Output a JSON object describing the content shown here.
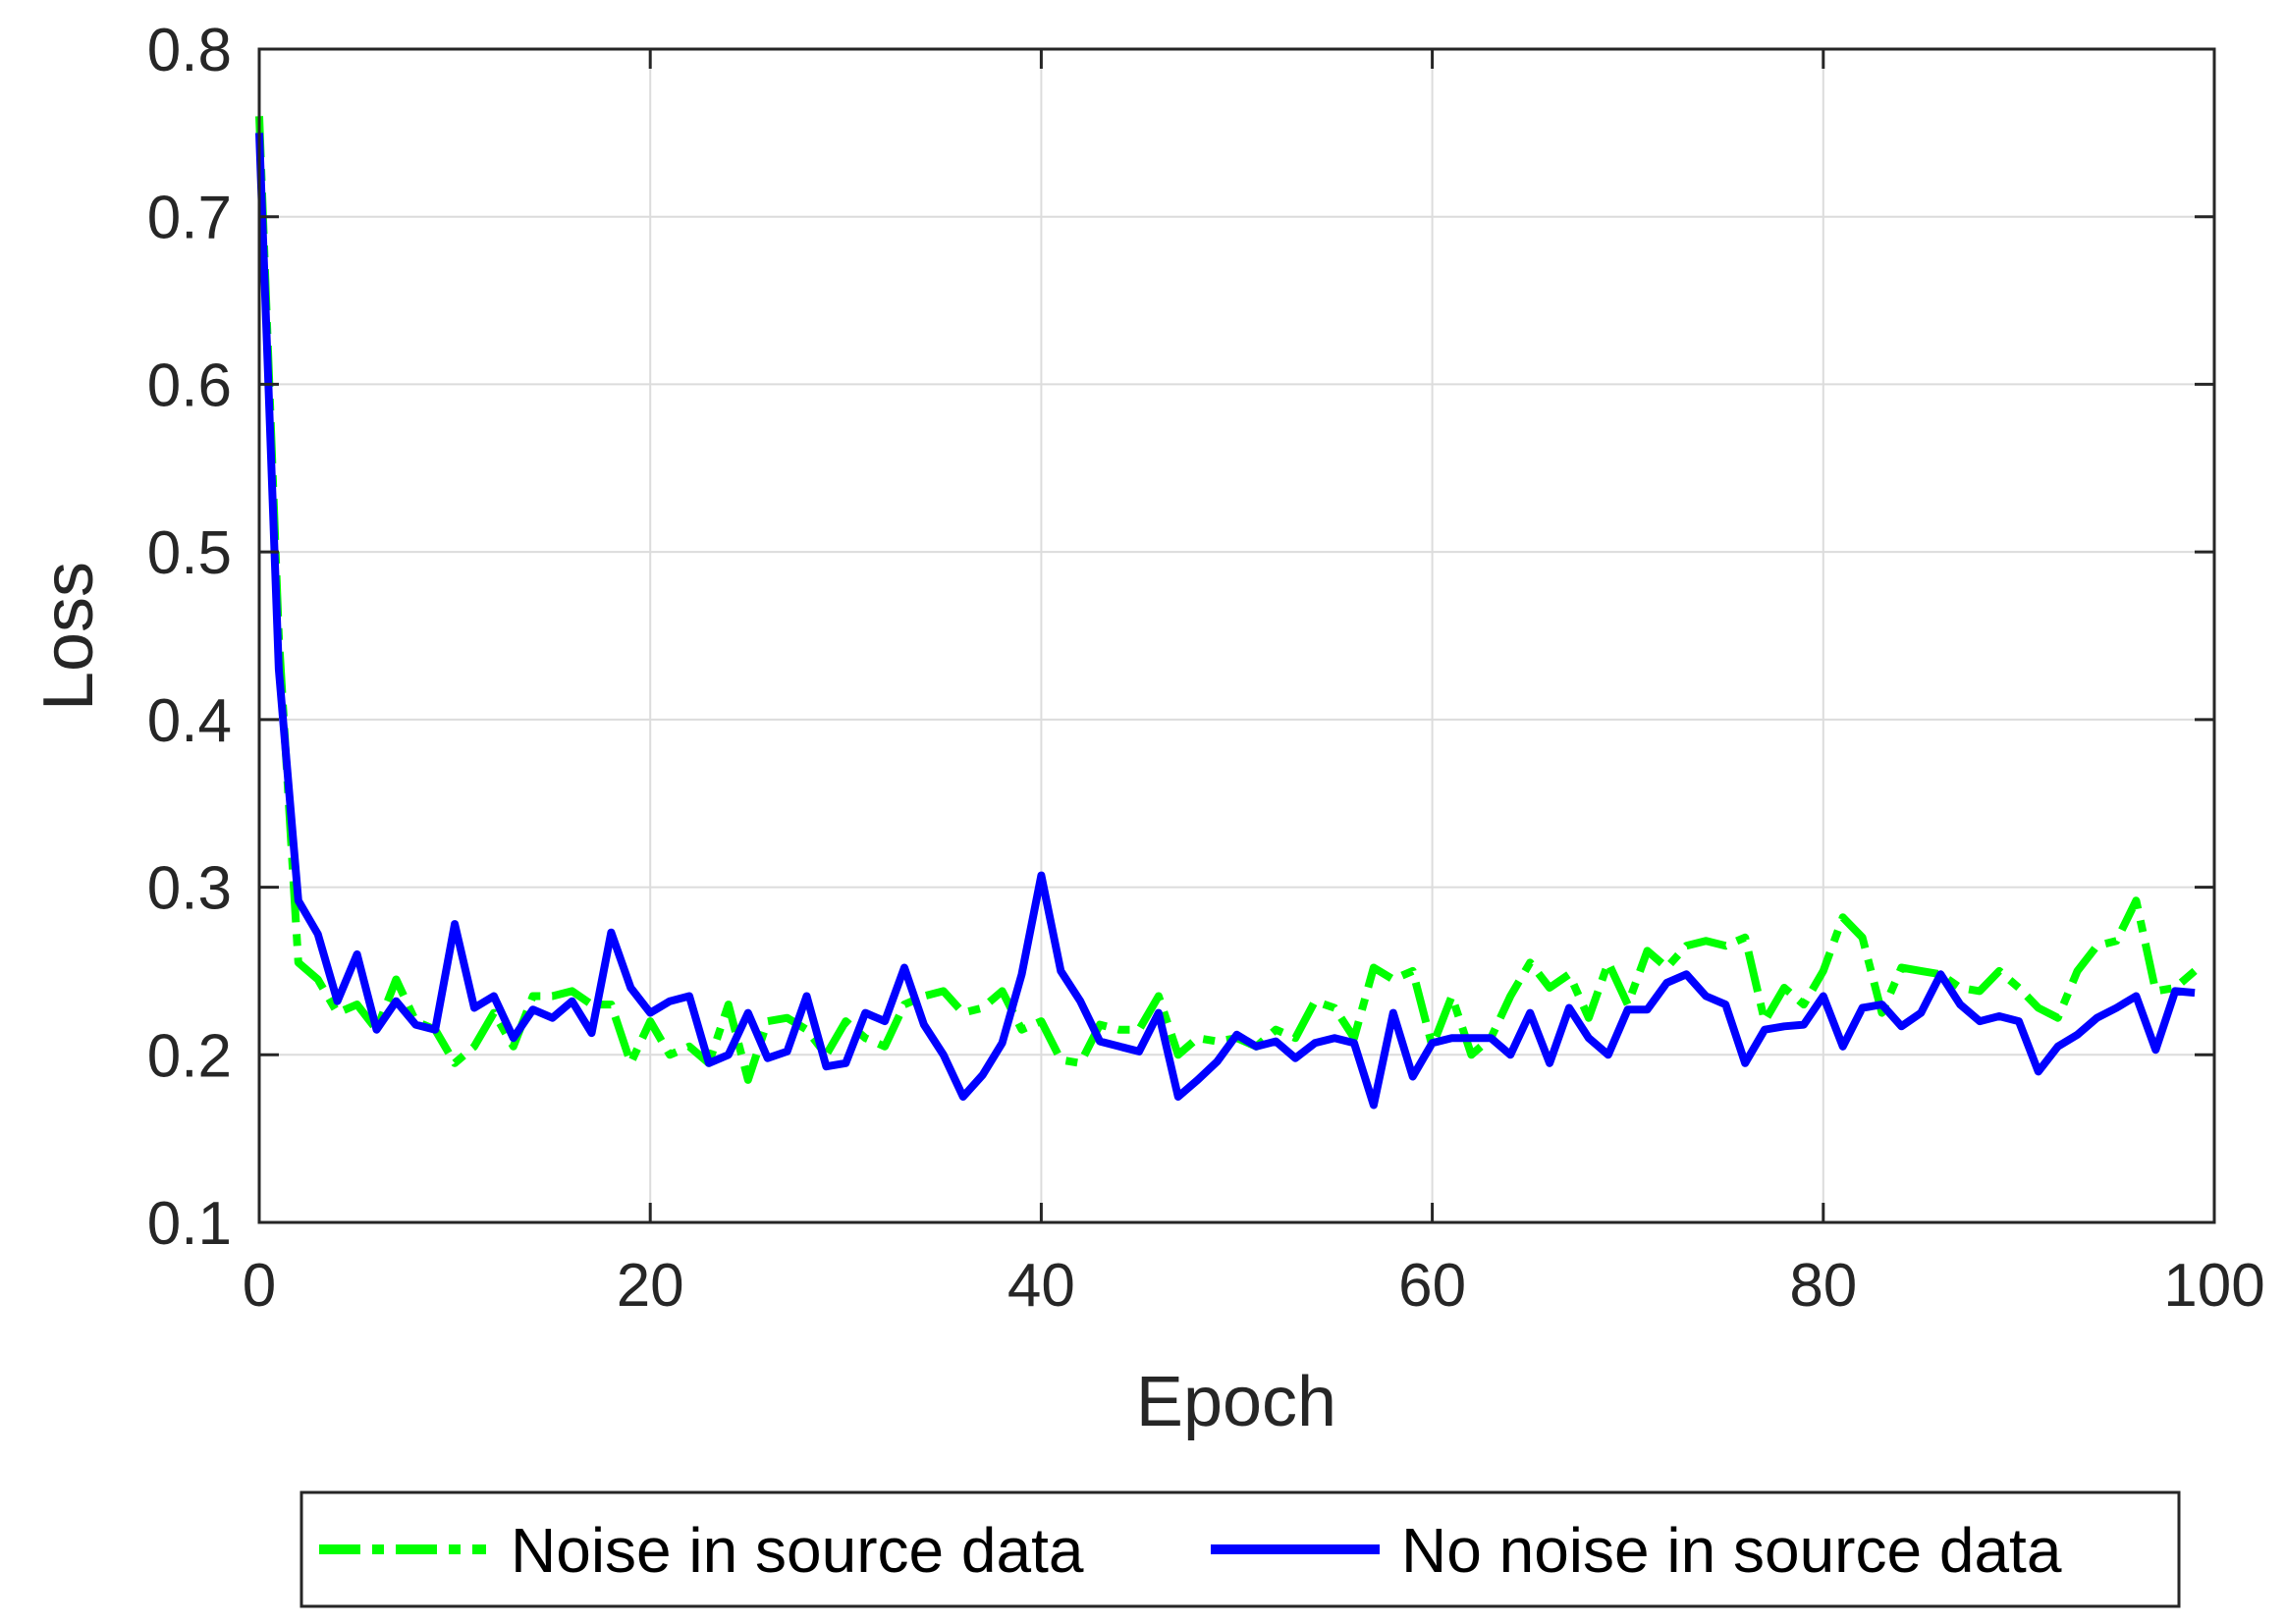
{
  "chart_data": {
    "type": "line",
    "title": "",
    "xlabel": "Epoch",
    "ylabel": "Loss",
    "xlim": [
      0,
      100
    ],
    "ylim": [
      0.1,
      0.8
    ],
    "xticks": [
      0,
      20,
      40,
      60,
      80,
      100
    ],
    "yticks": [
      0.1,
      0.2,
      0.3,
      0.4,
      0.5,
      0.6,
      0.7,
      0.8
    ],
    "xtick_labels": [
      "0",
      "20",
      "40",
      "60",
      "80",
      "100"
    ],
    "ytick_labels": [
      "0.1",
      "0.2",
      "0.3",
      "0.4",
      "0.5",
      "0.6",
      "0.7",
      "0.8"
    ],
    "grid": true,
    "legend_position": "bottom-outside",
    "x": [
      0,
      1,
      2,
      3,
      4,
      5,
      6,
      7,
      8,
      9,
      10,
      11,
      12,
      13,
      14,
      15,
      16,
      17,
      18,
      19,
      20,
      21,
      22,
      23,
      24,
      25,
      26,
      27,
      28,
      29,
      30,
      31,
      32,
      33,
      34,
      35,
      36,
      37,
      38,
      39,
      40,
      41,
      42,
      43,
      44,
      45,
      46,
      47,
      48,
      49,
      50,
      51,
      52,
      53,
      54,
      55,
      56,
      57,
      58,
      59,
      60,
      61,
      62,
      63,
      64,
      65,
      66,
      67,
      68,
      69,
      70,
      71,
      72,
      73,
      74,
      75,
      76,
      77,
      78,
      79,
      80,
      81,
      82,
      83,
      84,
      85,
      86,
      87,
      88,
      89,
      90,
      91,
      92,
      93,
      94,
      95,
      96,
      97,
      98,
      99
    ],
    "series": [
      {
        "name": "Noise in source data",
        "color": "#00ff00",
        "line_style": "dash-dot",
        "values": [
          0.76,
          0.45,
          0.255,
          0.245,
          0.225,
          0.23,
          0.215,
          0.245,
          0.22,
          0.215,
          0.195,
          0.205,
          0.225,
          0.205,
          0.235,
          0.235,
          0.238,
          0.23,
          0.23,
          0.195,
          0.22,
          0.2,
          0.205,
          0.195,
          0.23,
          0.185,
          0.22,
          0.222,
          0.215,
          0.2,
          0.22,
          0.21,
          0.205,
          0.23,
          0.235,
          0.238,
          0.225,
          0.228,
          0.238,
          0.215,
          0.22,
          0.197,
          0.195,
          0.218,
          0.215,
          0.215,
          0.235,
          0.2,
          0.21,
          0.208,
          0.21,
          0.205,
          0.215,
          0.21,
          0.232,
          0.228,
          0.21,
          0.252,
          0.245,
          0.25,
          0.205,
          0.235,
          0.2,
          0.21,
          0.235,
          0.255,
          0.24,
          0.248,
          0.222,
          0.255,
          0.23,
          0.262,
          0.252,
          0.265,
          0.268,
          0.265,
          0.27,
          0.22,
          0.24,
          0.23,
          0.25,
          0.282,
          0.27,
          0.225,
          0.252,
          0.25,
          0.248,
          0.24,
          0.238,
          0.25,
          0.24,
          0.228,
          0.222,
          0.25,
          0.265,
          0.268,
          0.292,
          0.238,
          0.24,
          0.25
        ]
      },
      {
        "name": "No noise in source data",
        "color": "#0000ff",
        "line_style": "solid",
        "values": [
          0.75,
          0.43,
          0.292,
          0.272,
          0.232,
          0.26,
          0.215,
          0.232,
          0.218,
          0.215,
          0.278,
          0.228,
          0.235,
          0.21,
          0.227,
          0.222,
          0.232,
          0.213,
          0.273,
          0.24,
          0.225,
          0.232,
          0.235,
          0.195,
          0.2,
          0.225,
          0.198,
          0.202,
          0.235,
          0.193,
          0.195,
          0.225,
          0.22,
          0.252,
          0.218,
          0.2,
          0.175,
          0.188,
          0.207,
          0.248,
          0.307,
          0.25,
          0.232,
          0.208,
          0.205,
          0.202,
          0.225,
          0.175,
          0.185,
          0.196,
          0.212,
          0.205,
          0.208,
          0.198,
          0.207,
          0.21,
          0.207,
          0.17,
          0.225,
          0.187,
          0.207,
          0.21,
          0.21,
          0.21,
          0.2,
          0.225,
          0.195,
          0.228,
          0.21,
          0.2,
          0.227,
          0.227,
          0.243,
          0.248,
          0.235,
          0.23,
          0.195,
          0.215,
          0.217,
          0.218,
          0.235,
          0.205,
          0.228,
          0.23,
          0.217,
          0.225,
          0.248,
          0.23,
          0.22,
          0.223,
          0.22,
          0.19,
          0.205,
          0.212,
          0.222,
          0.228,
          0.235,
          0.203,
          0.238,
          0.237
        ]
      }
    ]
  }
}
